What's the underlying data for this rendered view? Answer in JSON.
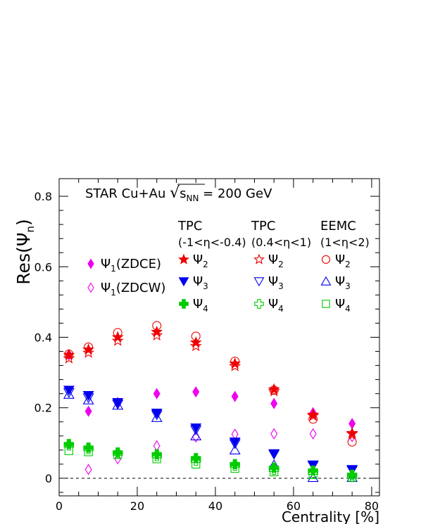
{
  "chart_data": {
    "type": "scatter",
    "title": "STAR Cu+Au √sNN = 200 GeV",
    "title_parts": {
      "pre": "STAR Cu+Au ",
      "sqrt": "s",
      "sub": "NN",
      "post": " = 200 GeV"
    },
    "xlabel": "Centrality [%]",
    "ylabel": "Res(Ψn)",
    "ylabel_parts": {
      "pre": "Res(Ψ",
      "sub": "n",
      "post": ")"
    },
    "xlim": [
      0,
      82
    ],
    "ylim": [
      -0.05,
      0.85
    ],
    "x_ticks": [
      0,
      20,
      40,
      60,
      80
    ],
    "y_ticks": [
      0,
      0.2,
      0.4,
      0.6,
      0.8
    ],
    "x_tick_labels": [
      "0",
      "20",
      "40",
      "60",
      "80"
    ],
    "y_tick_labels": [
      "0",
      "0.2",
      "0.4",
      "0.6",
      "0.8"
    ],
    "zero_line": true,
    "grid": false,
    "legend_headers": [
      {
        "line1": "TPC",
        "line2": "(-1<η<-0.4)"
      },
      {
        "line1": "TPC",
        "line2": "(0.4<η<1)"
      },
      {
        "line1": "EEMC",
        "line2": "(1<η<2)"
      }
    ],
    "series": [
      {
        "id": "zdce",
        "name": "Ψ1(ZDCE)",
        "sym": "Ψ",
        "sub": "1",
        "suffix": "(ZDCE)",
        "marker": "diamond",
        "filled": true,
        "color": "#ee00ee",
        "x": [
          2.5,
          7.5,
          15,
          25,
          35,
          45,
          55,
          65,
          75
        ],
        "y": [
          0.35,
          0.19,
          0.215,
          0.24,
          0.245,
          0.232,
          0.212,
          0.186,
          0.155
        ]
      },
      {
        "id": "zdcw",
        "name": "Ψ1(ZDCW)",
        "sym": "Ψ",
        "sub": "1",
        "suffix": "(ZDCW)",
        "marker": "diamond",
        "filled": false,
        "color": "#ee00ee",
        "x": [
          2.5,
          7.5,
          15,
          25,
          35,
          45,
          55,
          65,
          75
        ],
        "y": [
          0.35,
          0.025,
          0.055,
          0.092,
          0.117,
          0.125,
          0.126,
          0.126,
          0.118
        ]
      },
      {
        "id": "tpcw2",
        "name": "Ψ2",
        "sym": "Ψ",
        "sub": "2",
        "suffix": "",
        "marker": "star",
        "filled": true,
        "color": "#ee0000",
        "x": [
          2.5,
          7.5,
          15,
          25,
          35,
          45,
          55,
          65,
          75
        ],
        "y": [
          0.35,
          0.365,
          0.4,
          0.415,
          0.385,
          0.325,
          0.252,
          0.18,
          0.128
        ]
      },
      {
        "id": "tpce2",
        "name": "Ψ2",
        "sym": "Ψ",
        "sub": "2",
        "suffix": "",
        "marker": "star",
        "filled": false,
        "color": "#ee0000",
        "x": [
          2.5,
          7.5,
          15,
          25,
          35,
          45,
          55,
          65,
          75
        ],
        "y": [
          0.34,
          0.356,
          0.39,
          0.405,
          0.375,
          0.318,
          0.247,
          0.177,
          0.126
        ]
      },
      {
        "id": "eemc2",
        "name": "Ψ2",
        "sym": "Ψ",
        "sub": "2",
        "suffix": "",
        "marker": "circle",
        "filled": false,
        "color": "#ee0000",
        "x": [
          2.5,
          7.5,
          15,
          25,
          35,
          45,
          55,
          65,
          75
        ],
        "y": [
          0.352,
          0.372,
          0.413,
          0.433,
          0.403,
          0.332,
          0.25,
          0.168,
          0.103
        ]
      },
      {
        "id": "tpcw3",
        "name": "Ψ3",
        "sym": "Ψ",
        "sub": "3",
        "suffix": "",
        "marker": "triangle-down",
        "filled": true,
        "color": "#0000ee",
        "x": [
          2.5,
          7.5,
          15,
          25,
          35,
          45,
          55,
          65,
          75
        ],
        "y": [
          0.25,
          0.235,
          0.215,
          0.185,
          0.143,
          0.103,
          0.07,
          0.038,
          0.025
        ]
      },
      {
        "id": "tpce3",
        "name": "Ψ3",
        "sym": "Ψ",
        "sub": "3",
        "suffix": "",
        "marker": "triangle-down",
        "filled": false,
        "color": "#0000ee",
        "x": [
          2.5,
          7.5,
          15,
          25,
          35,
          45,
          55,
          65,
          75
        ],
        "y": [
          0.243,
          0.228,
          0.21,
          0.18,
          0.137,
          0.098,
          0.068,
          0.036,
          0.023
        ]
      },
      {
        "id": "eemc3",
        "name": "Ψ3",
        "sym": "Ψ",
        "sub": "3",
        "suffix": "",
        "marker": "triangle-up",
        "filled": false,
        "color": "#0000ee",
        "x": [
          2.5,
          7.5,
          15,
          25,
          35,
          45,
          55,
          65,
          75
        ],
        "y": [
          0.238,
          0.222,
          0.207,
          0.172,
          0.12,
          0.08,
          0.038,
          0.002,
          0.002
        ]
      },
      {
        "id": "tpcw4",
        "name": "Ψ4",
        "sym": "Ψ",
        "sub": "4",
        "suffix": "",
        "marker": "cross",
        "filled": true,
        "color": "#00cc00",
        "x": [
          2.5,
          7.5,
          15,
          25,
          35,
          45,
          55,
          65,
          75
        ],
        "y": [
          0.097,
          0.087,
          0.073,
          0.068,
          0.057,
          0.04,
          0.03,
          0.022,
          0.01
        ]
      },
      {
        "id": "tpce4",
        "name": "Ψ4",
        "sym": "Ψ",
        "sub": "4",
        "suffix": "",
        "marker": "cross",
        "filled": false,
        "color": "#00cc00",
        "x": [
          2.5,
          7.5,
          15,
          25,
          35,
          45,
          55,
          65,
          75
        ],
        "y": [
          0.093,
          0.083,
          0.07,
          0.063,
          0.05,
          0.036,
          0.024,
          0.016,
          0.005
        ]
      },
      {
        "id": "eemc4",
        "name": "Ψ4",
        "sym": "Ψ",
        "sub": "4",
        "suffix": "",
        "marker": "square",
        "filled": false,
        "color": "#00cc00",
        "x": [
          2.5,
          7.5,
          15,
          25,
          35,
          45,
          55,
          65,
          75
        ],
        "y": [
          0.078,
          0.075,
          0.067,
          0.055,
          0.04,
          0.028,
          0.018,
          0.01,
          0.003
        ]
      }
    ]
  }
}
